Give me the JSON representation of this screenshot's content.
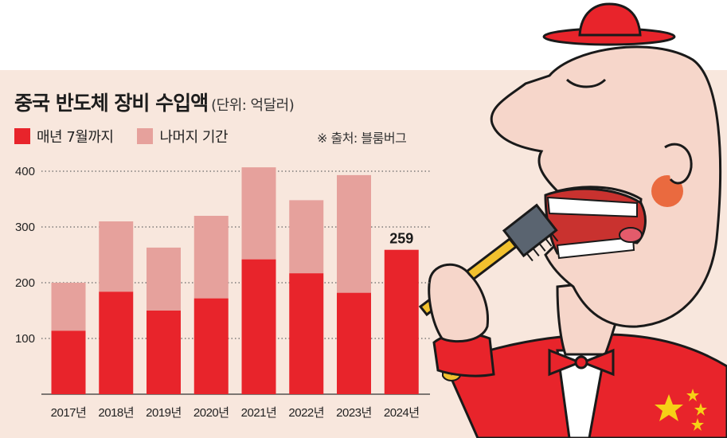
{
  "header": {
    "title": "중국 반도체 장비 수입액",
    "unit": "(단위: 억달러)",
    "source": "※ 출처: 블룸버그"
  },
  "colors": {
    "jan_jul": "#e8242b",
    "rest": "#e6a19c",
    "background": "#f8e7dd",
    "gridline": "#666666"
  },
  "chart_data": {
    "type": "bar",
    "stacked": true,
    "categories": [
      "2017년",
      "2018년",
      "2019년",
      "2020년",
      "2021년",
      "2022년",
      "2023년",
      "2024년"
    ],
    "series": [
      {
        "name": "매년 7월까지",
        "values": [
          114,
          184,
          150,
          172,
          242,
          217,
          182,
          259
        ]
      },
      {
        "name": "나머지 기간",
        "values": [
          86,
          126,
          113,
          148,
          165,
          131,
          211,
          0
        ]
      }
    ],
    "ylim": [
      0,
      400
    ],
    "yticks": [
      100,
      200,
      300,
      400
    ],
    "grid": true,
    "gridline_style": "dotted",
    "annotations": [
      {
        "category": "2024년",
        "text": "259"
      }
    ],
    "legend_position": "top-left"
  }
}
